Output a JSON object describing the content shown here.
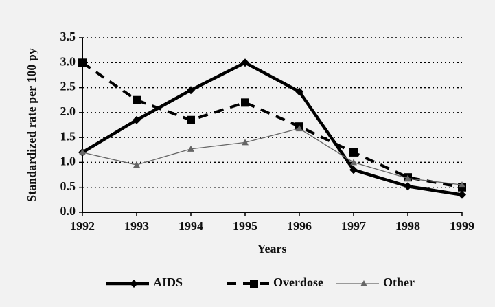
{
  "chart_data": {
    "type": "line",
    "y_label": "Standardized rate per 100 py",
    "x_label": "Years",
    "x": [
      1992,
      1993,
      1994,
      1995,
      1996,
      1997,
      1998,
      1999
    ],
    "xlim": [
      1992,
      1999
    ],
    "xticks": [
      1992,
      1993,
      1994,
      1995,
      1996,
      1997,
      1998,
      1999
    ],
    "ylim": [
      0,
      3.5
    ],
    "yticks": [
      {
        "value": 0,
        "label": "0.0"
      },
      0.5,
      {
        "value": 1,
        "label": "1.0"
      },
      1.5,
      {
        "value": 2,
        "label": "2.0"
      },
      2.5,
      {
        "value": 3,
        "label": "3.0"
      },
      3.5
    ],
    "grid": true,
    "legend": "bottom",
    "series": [
      {
        "name": "AIDS",
        "color": "#000000",
        "style": "solid",
        "marker": "diamond",
        "values": [
          1.2,
          1.85,
          2.45,
          3.0,
          2.42,
          0.85,
          0.52,
          0.35
        ]
      },
      {
        "name": "Overdose",
        "color": "#000000",
        "style": "dashed",
        "marker": "square",
        "values": [
          3.0,
          2.25,
          1.85,
          2.2,
          1.72,
          1.2,
          0.7,
          0.5
        ]
      },
      {
        "name": "Other",
        "color": "#666666",
        "style": "thin",
        "marker": "triangle",
        "values": [
          1.2,
          0.95,
          1.27,
          1.4,
          1.68,
          1.0,
          0.68,
          0.55
        ]
      }
    ]
  }
}
